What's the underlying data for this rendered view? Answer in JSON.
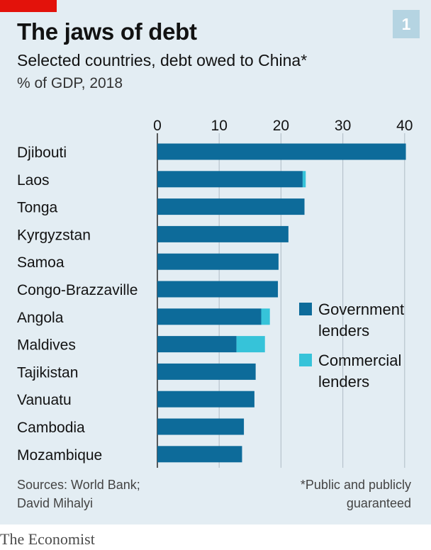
{
  "header": {
    "title": "The jaws of debt",
    "subtitle": "Selected countries, debt owed to China*",
    "unit": "% of GDP, 2018",
    "badge": "1"
  },
  "footer": {
    "source": "Sources: World Bank;\nDavid Mihalyi",
    "footnote": "*Public and publicly\nguaranteed",
    "brand": "The Economist"
  },
  "colors": {
    "government": "#0d6b9a",
    "commercial": "#36c3d9",
    "grid": "#b7c4cc",
    "axis": "#333333"
  },
  "chart_data": {
    "type": "bar",
    "orientation": "horizontal",
    "stacked": true,
    "categories": [
      "Djibouti",
      "Laos",
      "Tonga",
      "Kyrgyzstan",
      "Samoa",
      "Congo-Brazzaville",
      "Angola",
      "Maldives",
      "Tajikistan",
      "Vanuatu",
      "Cambodia",
      "Mozambique"
    ],
    "series": [
      {
        "name": "Government lenders",
        "values": [
          40.2,
          23.5,
          23.8,
          21.2,
          19.6,
          19.5,
          16.8,
          12.8,
          15.9,
          15.7,
          14.0,
          13.7
        ]
      },
      {
        "name": "Commercial lenders",
        "values": [
          0,
          0.5,
          0,
          0,
          0,
          0,
          1.4,
          4.6,
          0,
          0,
          0,
          0
        ]
      }
    ],
    "x_ticks": [
      0,
      10,
      20,
      30,
      40
    ],
    "xlim": [
      0,
      40
    ],
    "grid": true,
    "legend_position": "right",
    "legend_labels": [
      "Government\nlenders",
      "Commercial\nlenders"
    ]
  }
}
